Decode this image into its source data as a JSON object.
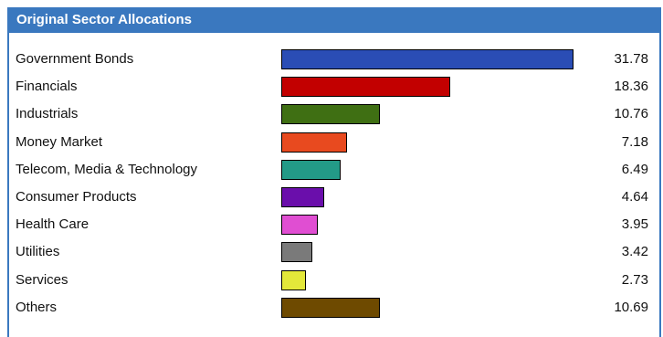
{
  "panel": {
    "title": "Original Sector Allocations"
  },
  "colors": {
    "header_bg": "#3a78bf",
    "header_text": "#ffffff",
    "bar_border": "#000000"
  },
  "chart_data": {
    "type": "bar",
    "orientation": "horizontal",
    "title": "Original Sector Allocations",
    "xlabel": "",
    "ylabel": "",
    "xlim": [
      0,
      31.78
    ],
    "grid": false,
    "legend": "none",
    "categories": [
      "Government Bonds",
      "Financials",
      "Industrials",
      "Money Market",
      "Telecom, Media & Technology",
      "Consumer Products",
      "Health Care",
      "Utilities",
      "Services",
      "Others"
    ],
    "values": [
      31.78,
      18.36,
      10.76,
      7.18,
      6.49,
      4.64,
      3.95,
      3.42,
      2.73,
      10.69
    ],
    "value_labels": [
      "31.78",
      "18.36",
      "10.76",
      "7.18",
      "6.49",
      "4.64",
      "3.95",
      "3.42",
      "2.73",
      "10.69"
    ],
    "bar_colors": [
      "#2a4db5",
      "#c20000",
      "#3f6f13",
      "#e84a1f",
      "#239a87",
      "#6a0eab",
      "#e04ed2",
      "#7a7a7a",
      "#e3e83a",
      "#6e4a00"
    ]
  }
}
